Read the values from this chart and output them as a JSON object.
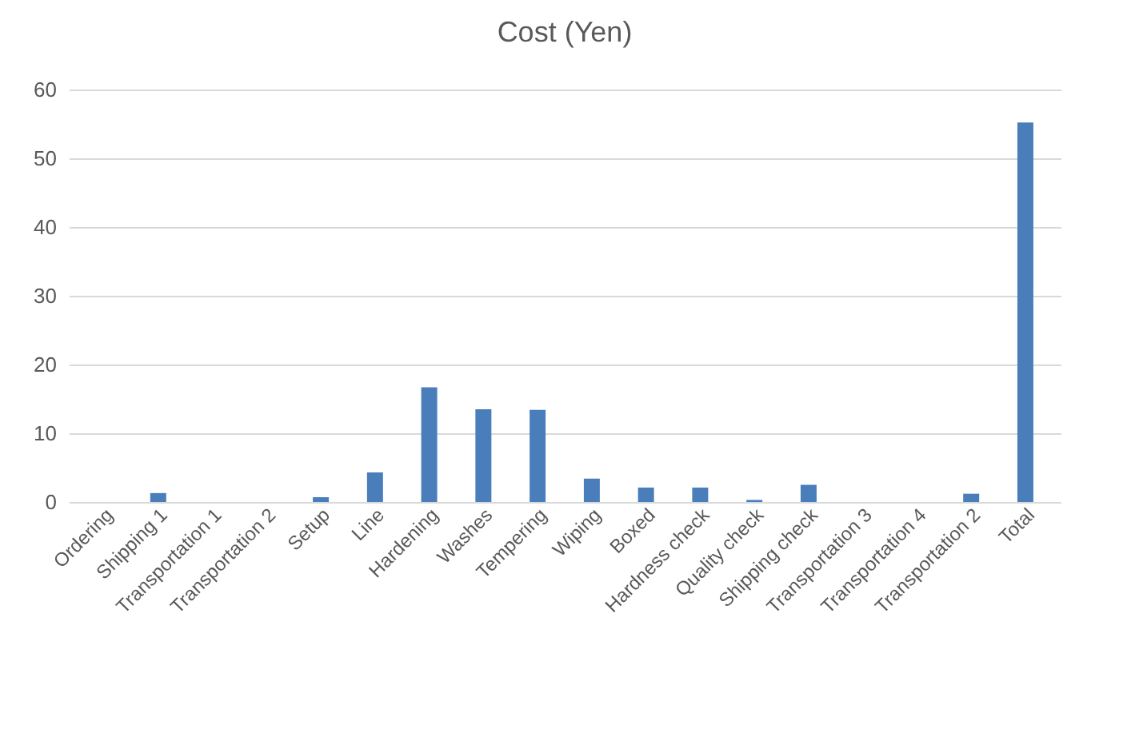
{
  "chart_data": {
    "type": "bar",
    "title": "Cost (Yen)",
    "categories": [
      "Ordering",
      "Shipping 1",
      "Transportation 1",
      "Transportation 2",
      "Setup",
      "Line",
      "Hardening",
      "Washes",
      "Tempering",
      "Wiping",
      "Boxed",
      "Hardness check",
      "Quality check",
      "Shipping check",
      "Transportation 3",
      "Transportation 4",
      "Transportation 2",
      "Total"
    ],
    "values": [
      0,
      1.3,
      0,
      0,
      0.7,
      4.3,
      16.7,
      13.5,
      13.4,
      3.4,
      2.1,
      2.1,
      0.3,
      2.5,
      0,
      0,
      1.2,
      55.2
    ],
    "color": "#4a7ebb",
    "ylim": [
      0,
      60
    ],
    "yticks": [
      0,
      10,
      20,
      30,
      40,
      50,
      60
    ],
    "grid": "y"
  }
}
